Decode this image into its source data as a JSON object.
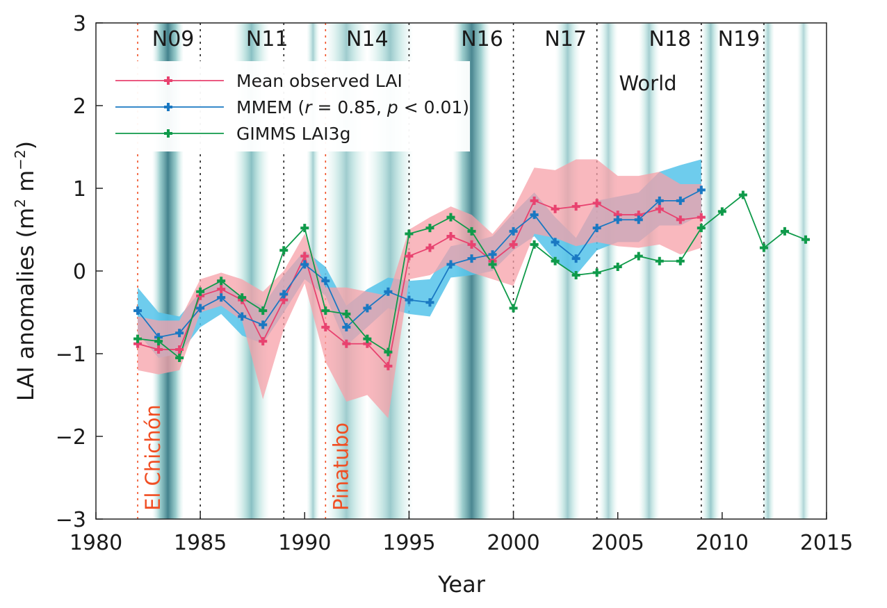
{
  "chart_data": {
    "type": "line",
    "xlabel": "Year",
    "ylabel_prefix": "LAI anomalies (m",
    "ylabel_sup1": "2",
    "ylabel_mid": " m",
    "ylabel_sup2": "−2",
    "ylabel_suffix": ")",
    "xlim": [
      1980,
      2015
    ],
    "ylim": [
      -3,
      3
    ],
    "xticks": [
      1980,
      1985,
      1990,
      1995,
      2000,
      2005,
      2010,
      2015
    ],
    "yticks": [
      3,
      2,
      1,
      0,
      -1,
      -2,
      -3
    ],
    "ytick_labels": [
      "3",
      "2",
      "1",
      "0",
      "−1",
      "−2",
      "−3"
    ],
    "region_label": "World",
    "legend_placement": "top-left",
    "series": [
      {
        "name": "Mean observed LAI",
        "color": "#e8426f",
        "x": [
          1982,
          1983,
          1984,
          1985,
          1986,
          1987,
          1988,
          1989,
          1990,
          1991,
          1992,
          1993,
          1994,
          1995,
          1996,
          1997,
          1998,
          1999,
          2000,
          2001,
          2002,
          2003,
          2004,
          2005,
          2006,
          2007,
          2008,
          2009
        ],
        "y": [
          -0.88,
          -0.95,
          -0.95,
          -0.3,
          -0.22,
          -0.35,
          -0.85,
          -0.35,
          0.18,
          -0.68,
          -0.88,
          -0.88,
          -1.15,
          0.18,
          0.28,
          0.42,
          0.32,
          0.12,
          0.32,
          0.85,
          0.75,
          0.78,
          0.82,
          0.68,
          0.68,
          0.75,
          0.62,
          0.65
        ],
        "upper": [
          -0.55,
          -0.6,
          -0.6,
          -0.1,
          -0.02,
          -0.1,
          -0.25,
          0.0,
          0.45,
          -0.2,
          -0.2,
          -0.25,
          -0.3,
          0.5,
          0.65,
          0.78,
          0.68,
          0.45,
          0.75,
          1.25,
          1.22,
          1.35,
          1.35,
          1.15,
          1.15,
          1.2,
          1.05,
          1.05
        ],
        "lower": [
          -1.2,
          -1.25,
          -1.2,
          -0.5,
          -0.42,
          -0.6,
          -1.55,
          -0.7,
          -0.15,
          -1.1,
          -1.58,
          -1.5,
          -1.78,
          -0.1,
          -0.05,
          0.1,
          -0.02,
          -0.1,
          -0.18,
          0.45,
          0.4,
          0.3,
          0.35,
          0.3,
          0.28,
          0.32,
          0.2,
          0.28
        ]
      },
      {
        "name": "MMEM",
        "legend_suffix_a": " (",
        "legend_r": "r",
        "legend_mid": " = 0.85, ",
        "legend_p": "p",
        "legend_end": " < 0.01)",
        "color": "#1a78c2",
        "x": [
          1982,
          1983,
          1984,
          1985,
          1986,
          1987,
          1988,
          1989,
          1990,
          1991,
          1992,
          1993,
          1994,
          1995,
          1996,
          1997,
          1998,
          1999,
          2000,
          2001,
          2002,
          2003,
          2004,
          2005,
          2006,
          2007,
          2008,
          2009
        ],
        "y": [
          -0.48,
          -0.8,
          -0.75,
          -0.45,
          -0.32,
          -0.55,
          -0.65,
          -0.28,
          0.08,
          -0.12,
          -0.68,
          -0.45,
          -0.25,
          -0.35,
          -0.38,
          0.08,
          0.15,
          0.2,
          0.48,
          0.68,
          0.35,
          0.15,
          0.52,
          0.62,
          0.62,
          0.85,
          0.85,
          0.98
        ],
        "upper": [
          -0.2,
          -0.5,
          -0.55,
          -0.25,
          -0.12,
          -0.32,
          -0.42,
          -0.05,
          0.25,
          0.05,
          -0.42,
          -0.22,
          -0.08,
          -0.12,
          -0.1,
          0.3,
          0.35,
          0.42,
          0.7,
          0.95,
          0.65,
          0.4,
          0.85,
          0.9,
          0.95,
          1.2,
          1.28,
          1.35
        ],
        "lower": [
          -0.75,
          -1.05,
          -1.0,
          -0.68,
          -0.52,
          -0.78,
          -0.88,
          -0.5,
          -0.1,
          -0.3,
          -0.9,
          -0.68,
          -0.45,
          -0.52,
          -0.55,
          -0.08,
          -0.05,
          0.0,
          0.25,
          0.42,
          0.12,
          -0.05,
          0.25,
          0.35,
          0.35,
          0.55,
          0.55,
          0.68
        ]
      },
      {
        "name": "GIMMS LAI3g",
        "color": "#0f9a4a",
        "x": [
          1982,
          1983,
          1984,
          1985,
          1986,
          1987,
          1988,
          1989,
          1990,
          1991,
          1992,
          1993,
          1994,
          1995,
          1996,
          1997,
          1998,
          1999,
          2000,
          2001,
          2002,
          2003,
          2004,
          2005,
          2006,
          2007,
          2008,
          2009,
          2010,
          2011,
          2012,
          2013,
          2014
        ],
        "y": [
          -0.82,
          -0.85,
          -1.05,
          -0.25,
          -0.12,
          -0.32,
          -0.48,
          0.25,
          0.52,
          -0.48,
          -0.52,
          -0.82,
          -0.98,
          0.45,
          0.52,
          0.65,
          0.48,
          0.08,
          -0.45,
          0.32,
          0.12,
          -0.05,
          -0.02,
          0.05,
          0.18,
          0.12,
          0.12,
          0.52,
          0.72,
          0.92,
          0.28,
          0.48,
          0.38
        ]
      }
    ],
    "satellite_labels": [
      {
        "label": "N09",
        "x": 1983.7
      },
      {
        "label": "N11",
        "x": 1988.2
      },
      {
        "label": "N14",
        "x": 1993.0
      },
      {
        "label": "N16",
        "x": 1998.5
      },
      {
        "label": "N17",
        "x": 2002.5
      },
      {
        "label": "N18",
        "x": 2007.5
      },
      {
        "label": "N19",
        "x": 2010.8
      }
    ],
    "satellite_transitions": [
      1985,
      1989,
      1995,
      2000,
      2004,
      2009,
      2012
    ],
    "volcanic_eruptions": [
      {
        "name": "El Chichón",
        "x": 1982
      },
      {
        "name": "Pinatubo",
        "x": 1991
      }
    ],
    "shading_bands": [
      {
        "x0": 1982.7,
        "x1": 1984.2,
        "intensity": 0.9
      },
      {
        "x0": 1986.6,
        "x1": 1988.3,
        "intensity": 0.55
      },
      {
        "x0": 1990.1,
        "x1": 1990.7,
        "intensity": 0.3
      },
      {
        "x0": 1991.0,
        "x1": 1993.0,
        "intensity": 0.35
      },
      {
        "x0": 1993.0,
        "x1": 1995.2,
        "intensity": 0.4
      },
      {
        "x0": 1997.1,
        "x1": 1998.9,
        "intensity": 0.85
      },
      {
        "x0": 2002.0,
        "x1": 2003.2,
        "intensity": 0.35
      },
      {
        "x0": 2004.1,
        "x1": 2005.0,
        "intensity": 0.25
      },
      {
        "x0": 2006.0,
        "x1": 2007.0,
        "intensity": 0.3
      },
      {
        "x0": 2009.0,
        "x1": 2009.9,
        "intensity": 0.4
      },
      {
        "x0": 2011.9,
        "x1": 2012.5,
        "intensity": 0.25
      },
      {
        "x0": 2013.6,
        "x1": 2014.2,
        "intensity": 0.2
      }
    ]
  }
}
